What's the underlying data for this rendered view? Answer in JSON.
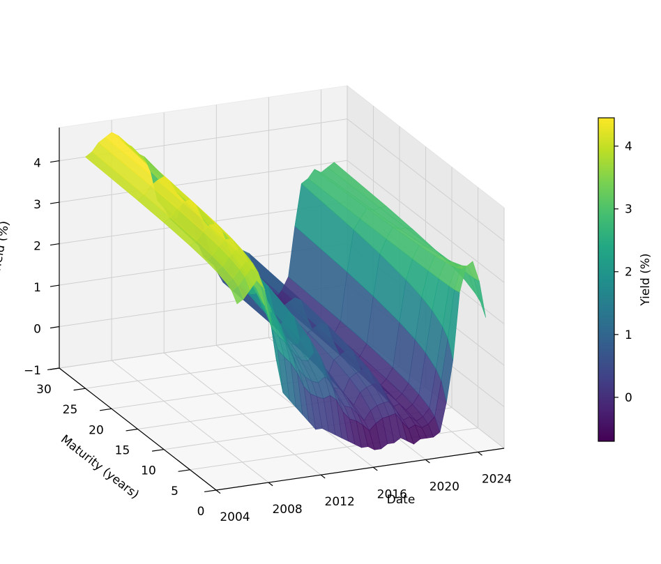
{
  "chart_data": {
    "type": "surface3d",
    "title": "",
    "xlabel": "Date",
    "ylabel": "Maturity (years)",
    "zlabel": "Yield (%)",
    "colorbar_label": "Yield (%)",
    "colormap": "viridis",
    "date_ticks": [
      "2004",
      "2008",
      "2012",
      "2016",
      "2020",
      "2024"
    ],
    "maturity_ticks": [
      "0",
      "5",
      "10",
      "15",
      "20",
      "25",
      "30"
    ],
    "yield_ticks": [
      "−1",
      "0",
      "1",
      "2",
      "3",
      "4"
    ],
    "colorbar_ticks": [
      "0",
      "1",
      "2",
      "3",
      "4"
    ],
    "date_range": [
      2004,
      2026
    ],
    "maturity_range": [
      0,
      30
    ],
    "yield_range": [
      -1,
      4.8
    ],
    "colorbar_range": [
      -0.7,
      4.45
    ],
    "maturities": [
      1,
      2,
      3,
      5,
      7,
      10,
      15,
      20,
      30
    ],
    "dates": [
      2006.0,
      2006.5,
      2007.0,
      2007.5,
      2008.0,
      2008.5,
      2009.0,
      2009.5,
      2010.0,
      2010.5,
      2011.0,
      2011.5,
      2012.0,
      2012.5,
      2013.0,
      2013.5,
      2014.0,
      2014.5,
      2015.0,
      2015.5,
      2016.0,
      2016.5,
      2017.0,
      2017.5,
      2018.0,
      2018.5,
      2019.0,
      2019.5,
      2020.0,
      2020.5,
      2021.0,
      2021.5,
      2022.0,
      2022.5,
      2023.0,
      2023.5,
      2024.0,
      2024.5,
      2025.0
    ],
    "short_yield": [
      3.3,
      3.4,
      3.6,
      3.8,
      3.6,
      3.0,
      1.8,
      1.0,
      0.8,
      0.6,
      0.4,
      0.2,
      0.0,
      0.0,
      -0.1,
      -0.2,
      -0.3,
      -0.4,
      -0.5,
      -0.6,
      -0.6,
      -0.7,
      -0.7,
      -0.6,
      -0.6,
      -0.5,
      -0.6,
      -0.7,
      -0.6,
      -0.6,
      -0.6,
      -0.5,
      0.2,
      1.2,
      2.8,
      3.4,
      3.5,
      3.0,
      2.1
    ],
    "long_yield": [
      4.0,
      4.1,
      4.3,
      4.4,
      4.5,
      4.4,
      4.2,
      4.1,
      3.9,
      3.8,
      3.4,
      2.7,
      2.5,
      2.2,
      2.2,
      2.6,
      2.4,
      1.6,
      1.2,
      1.2,
      0.8,
      0.5,
      1.0,
      1.1,
      1.2,
      1.1,
      0.6,
      0.2,
      0.2,
      -0.1,
      0.1,
      0.4,
      1.6,
      2.6,
      2.7,
      2.9,
      2.8,
      2.9,
      3.0
    ]
  }
}
